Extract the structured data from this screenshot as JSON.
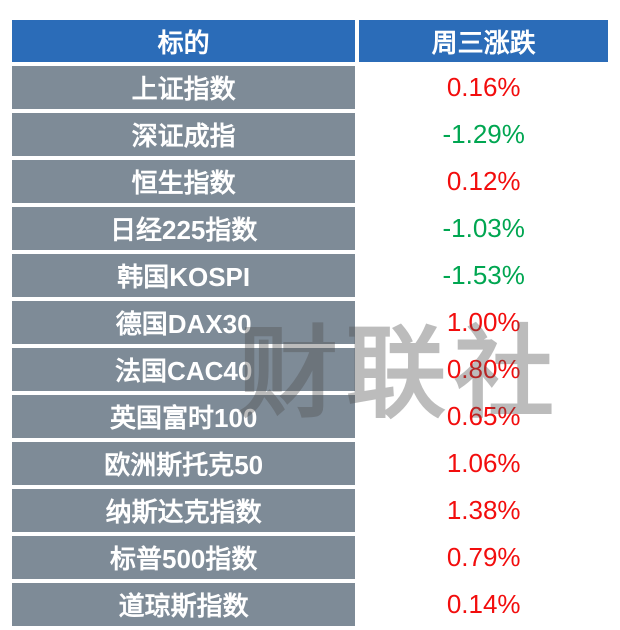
{
  "chart_data": {
    "type": "table",
    "columns": [
      "标的",
      "周三涨跌"
    ],
    "rows": [
      {
        "name": "上证指数",
        "change": "0.16%",
        "direction": "up"
      },
      {
        "name": "深证成指",
        "change": "-1.29%",
        "direction": "down"
      },
      {
        "name": "恒生指数",
        "change": "0.12%",
        "direction": "up"
      },
      {
        "name": "日经225指数",
        "change": "-1.03%",
        "direction": "down"
      },
      {
        "name": "韩国KOSPI",
        "change": "-1.53%",
        "direction": "down"
      },
      {
        "name": "德国DAX30",
        "change": "1.00%",
        "direction": "up"
      },
      {
        "name": "法国CAC40",
        "change": "0.80%",
        "direction": "up"
      },
      {
        "name": "英国富时100",
        "change": "0.65%",
        "direction": "up"
      },
      {
        "name": "欧洲斯托克50",
        "change": "1.06%",
        "direction": "up"
      },
      {
        "name": "纳斯达克指数",
        "change": "1.38%",
        "direction": "up"
      },
      {
        "name": "标普500指数",
        "change": "0.79%",
        "direction": "up"
      },
      {
        "name": "道琼斯指数",
        "change": "0.14%",
        "direction": "up"
      }
    ]
  },
  "watermark": "财联社",
  "colors": {
    "header_bg": "#2b6cb8",
    "name_cell_bg": "#7e8b97",
    "up": "#f20d0d",
    "down": "#00a651"
  }
}
